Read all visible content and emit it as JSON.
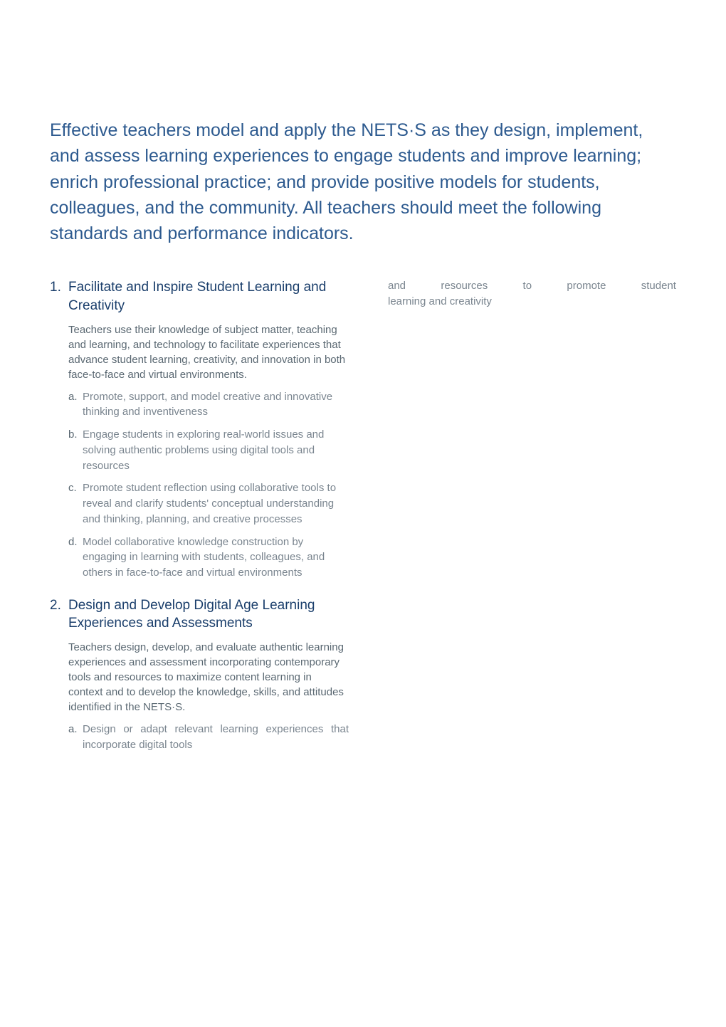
{
  "colors": {
    "intro": "#2d5a8f",
    "heading": "#1a3e6b",
    "body": "#5a6872",
    "sub_body": "#7a858f"
  },
  "intro": "Effective teachers model and apply the NETS·S as they design, implement, and assess learning experiences to engage students and improve learning; enrich professional practice; and provide positive models for students, colleagues, and the community. All teachers should meet the following standards and performance indicators.",
  "section1": {
    "num": "1.",
    "title": "Facilitate and Inspire Student Learning and Creativity",
    "body": "Teachers use their knowledge of subject matter, teaching and learning, and technology to facilitate experiences that advance student learning, creativity, and innovation in both face-to-face and virtual environments.",
    "items": [
      {
        "letter": "a.",
        "text": "Promote, support, and model creative and innovative thinking and inventiveness"
      },
      {
        "letter": "b.",
        "text": "Engage students in exploring real-world issues and solving authentic problems using digital tools and  resources"
      },
      {
        "letter": "c.",
        "text": "Promote student reflection using collaborative tools to reveal and clarify students' conceptual understanding and thinking, planning, and creative processes"
      },
      {
        "letter": "d.",
        "text": "Model collaborative knowledge construction by engaging in learning with students, colleagues, and others in face-to-face and virtual environments"
      }
    ]
  },
  "section2": {
    "num": "2.",
    "title": "Design and Develop Digital Age Learning Experiences and Assessments",
    "body": "Teachers design, develop, and evaluate authentic learning experiences and assessment incorporating contemporary tools and resources to maximize content learning in context and to develop the knowledge, skills, and attitudes identified in the NETS·S.",
    "items": [
      {
        "letter": "a.",
        "text": "Design or adapt relevant learning experiences that incorporate digital tools"
      }
    ]
  },
  "right_fragment": {
    "words": [
      "and",
      "resources",
      "to",
      "promote",
      "student"
    ],
    "line2": "learning and creativity"
  }
}
